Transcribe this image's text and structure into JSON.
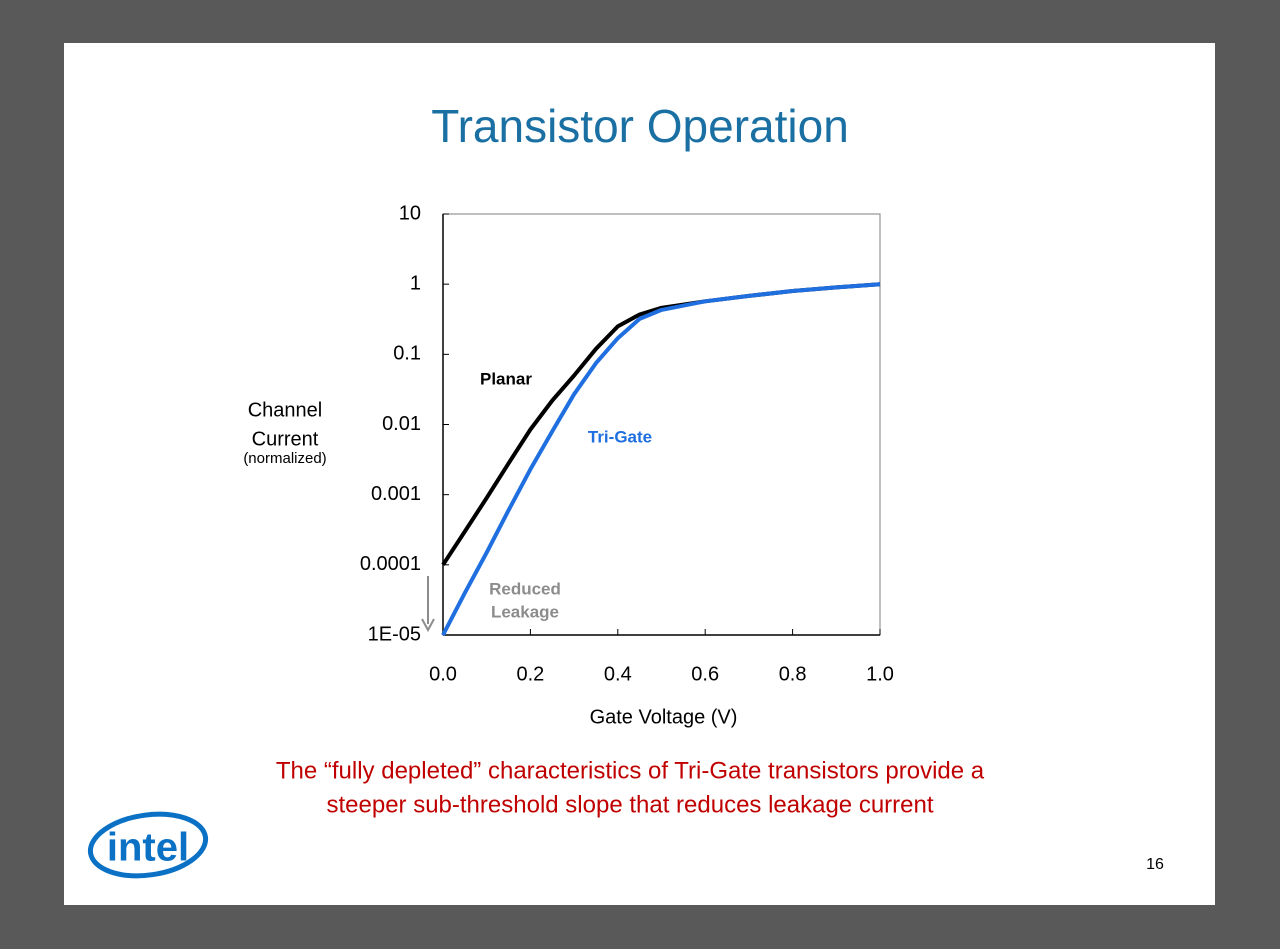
{
  "chart_data": {
    "type": "line",
    "title": "Transistor Operation",
    "x_label": "Gate Voltage (V)",
    "y_label": [
      "Channel",
      "Current",
      "(normalized)"
    ],
    "x": [
      0,
      0.05,
      0.1,
      0.15,
      0.2,
      0.25,
      0.3,
      0.35,
      0.4,
      0.45,
      0.5,
      0.6,
      0.7,
      0.8,
      0.9,
      1.0
    ],
    "series": [
      {
        "name": "Planar",
        "color": "#000000",
        "values": [
          0.0001,
          0.0003,
          0.0009,
          0.0028,
          0.0085,
          0.022,
          0.05,
          0.12,
          0.25,
          0.37,
          0.46,
          0.57,
          0.68,
          0.8,
          0.9,
          1
        ]
      },
      {
        "name": "Tri-Gate",
        "color": "#1f6fe0",
        "values": [
          1e-05,
          4e-05,
          0.00015,
          0.0006,
          0.0023,
          0.008,
          0.027,
          0.075,
          0.17,
          0.32,
          0.43,
          0.57,
          0.68,
          0.8,
          0.9,
          1
        ]
      }
    ],
    "annotation": {
      "lines": [
        "Reduced",
        "Leakage"
      ],
      "color": "#8c8c8c"
    },
    "xlim": [
      0,
      1
    ],
    "ylim": [
      1e-05,
      10
    ],
    "y_scale": "log",
    "xticks": [
      {
        "value": 0,
        "label": "0.0"
      },
      0.2,
      0.4,
      0.6,
      0.8,
      {
        "value": 1,
        "label": "1.0"
      }
    ],
    "yticks": [
      {
        "value": 1e-05,
        "label": "1E-05"
      },
      0.0001,
      0.001,
      0.01,
      0.1,
      1,
      10
    ]
  },
  "caption": [
    "The “fully depleted” characteristics of Tri-Gate transistors provide a",
    "steeper sub-threshold slope that reduces leakage current"
  ],
  "logo": "intel",
  "page_number": "16"
}
